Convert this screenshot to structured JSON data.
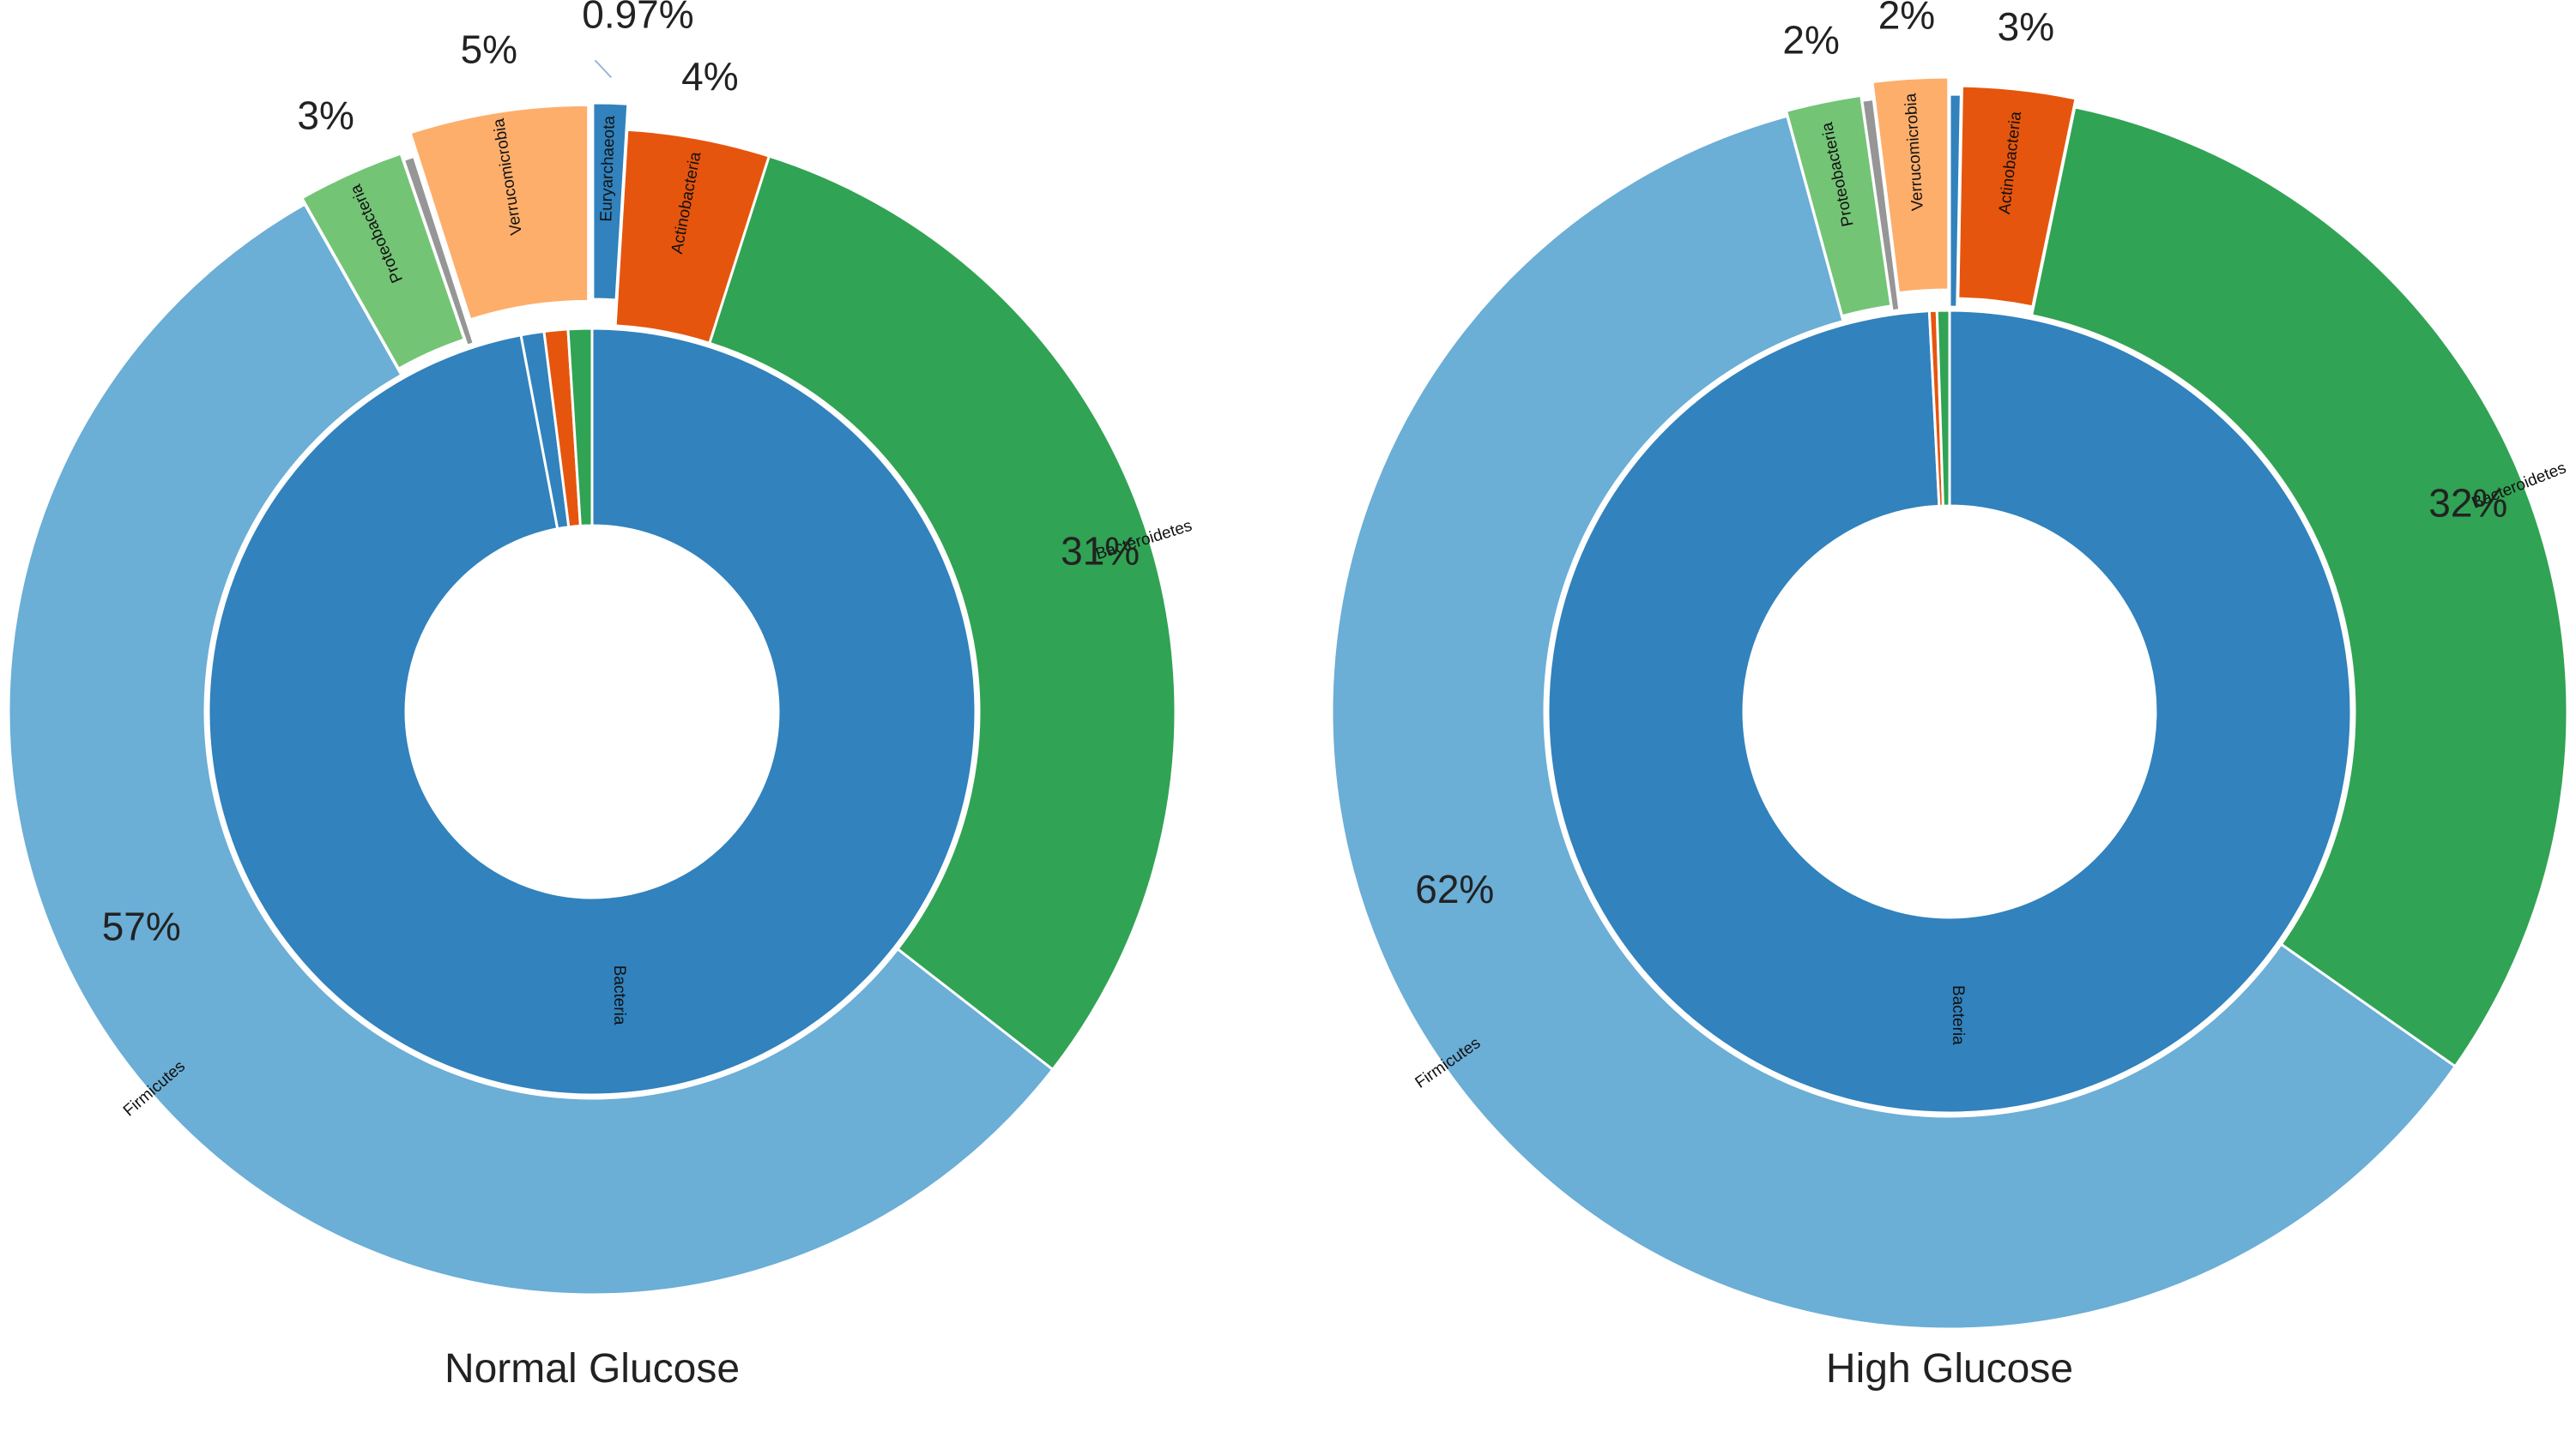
{
  "chart_data": [
    {
      "type": "sunburst",
      "title": "Normal Glucose",
      "inner_ring": [
        {
          "name": "Bacteria",
          "value": 97.03,
          "color": "#3182bd"
        },
        {
          "name": "",
          "value": 0.97,
          "color": "#3182bd"
        },
        {
          "name": "",
          "value": 1.0,
          "color": "#e6550d"
        },
        {
          "name": "",
          "value": 1.0,
          "color": "#31a354"
        }
      ],
      "outer_ring": [
        {
          "name": "Euryarchaeota",
          "value": 0.97,
          "label": "0.97%",
          "color": "#3182bd"
        },
        {
          "name": "Actinobacteria",
          "value": 4,
          "label": "4%",
          "color": "#e6550d"
        },
        {
          "name": "Bacteroidetes",
          "value": 31,
          "label": "31%",
          "color": "#31a354"
        },
        {
          "name": "Firmicutes",
          "value": 57,
          "label": "57%",
          "color": "#6baed6"
        },
        {
          "name": "Proteobacteria",
          "value": 3,
          "label": "3%",
          "color": "#74c476"
        },
        {
          "name": "",
          "value": 0.3,
          "label": "",
          "color": "#969696"
        },
        {
          "name": "Verrucomicrobia",
          "value": 5,
          "label": "5%",
          "color": "#fdae6b"
        }
      ]
    },
    {
      "type": "sunburst",
      "title": "High Glucose",
      "inner_ring": [
        {
          "name": "Bacteria",
          "value": 98.8,
          "color": "#3182bd"
        },
        {
          "name": "",
          "value": 0.3,
          "color": "#e6550d"
        },
        {
          "name": "",
          "value": 0.5,
          "color": "#31a354"
        }
      ],
      "outer_ring": [
        {
          "name": "",
          "value": 0.3,
          "label": "",
          "color": "#3182bd"
        },
        {
          "name": "Actinobacteria",
          "value": 3,
          "label": "3%",
          "color": "#e6550d"
        },
        {
          "name": "Bacteroidetes",
          "value": 32,
          "label": "32%",
          "color": "#31a354"
        },
        {
          "name": "Firmicutes",
          "value": 62,
          "label": "62%",
          "color": "#6baed6"
        },
        {
          "name": "Proteobacteria",
          "value": 2,
          "label": "2%",
          "color": "#74c476"
        },
        {
          "name": "",
          "value": 0.3,
          "label": "",
          "color": "#969696"
        },
        {
          "name": "Verrucomicrobia",
          "value": 2,
          "label": "2%",
          "color": "#fdae6b"
        }
      ]
    }
  ]
}
